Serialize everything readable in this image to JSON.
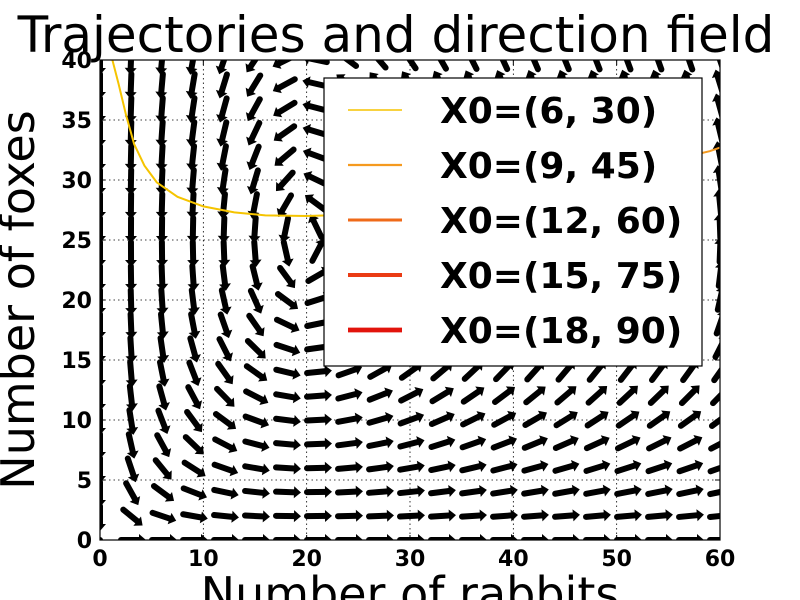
{
  "chart_data": {
    "type": "line",
    "title": "Trajectories and direction field",
    "xlabel": "Number of rabbits",
    "ylabel": "Number of foxes",
    "xlim": [
      0,
      60
    ],
    "ylim": [
      0,
      40
    ],
    "x_ticks": [
      "0",
      "10",
      "20",
      "30",
      "40",
      "50",
      "60"
    ],
    "y_ticks": [
      "0",
      "5",
      "10",
      "15",
      "20",
      "25",
      "30",
      "35",
      "40"
    ],
    "grid": true,
    "legend_position": "top-right",
    "quiver": {
      "x_values": [
        0,
        3,
        6,
        9,
        12,
        15,
        18,
        21,
        24,
        27,
        30,
        33,
        36,
        39,
        42,
        45,
        48,
        51,
        54,
        57,
        60
      ],
      "y_values": [
        0,
        2,
        4,
        6,
        8,
        10,
        12,
        14,
        16,
        18,
        20,
        22,
        24,
        26,
        28,
        30,
        32,
        34,
        36,
        38,
        40
      ],
      "color": "#000000"
    },
    "series": [
      {
        "name": "X0=(6, 30)",
        "color": "#f5c400",
        "points": [
          [
            1.2,
            40
          ],
          [
            1.8,
            38
          ],
          [
            2.5,
            35.5
          ],
          [
            3.3,
            33
          ],
          [
            4.3,
            31.2
          ],
          [
            5.5,
            29.8
          ],
          [
            7.5,
            28.6
          ],
          [
            10,
            27.8
          ],
          [
            13,
            27.3
          ],
          [
            16,
            27.05
          ],
          [
            20,
            27
          ],
          [
            24,
            27.1
          ],
          [
            27,
            27.2
          ]
        ]
      },
      {
        "name": "X0=(9, 45)",
        "color": "#f59a1f",
        "points": [
          [
            60,
            32.7
          ],
          [
            59,
            32.4
          ],
          [
            58,
            32.2
          ],
          [
            57,
            32
          ]
        ]
      },
      {
        "name": "X0=(12, 60)",
        "color": "#ef6a19"
      },
      {
        "name": "X0=(15, 75)",
        "color": "#ea3b14"
      },
      {
        "name": "X0=(18, 90)",
        "color": "#e2140c"
      }
    ]
  }
}
